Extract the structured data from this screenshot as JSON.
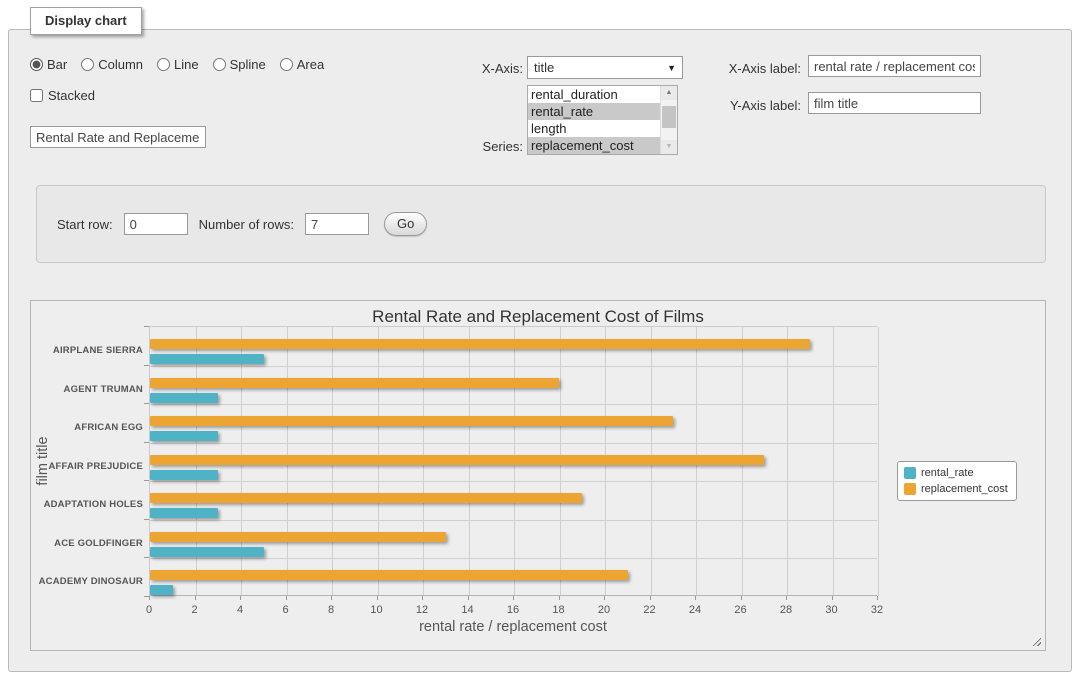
{
  "panel": {
    "legend": "Display chart"
  },
  "chart_type": {
    "options": [
      "Bar",
      "Column",
      "Line",
      "Spline",
      "Area"
    ],
    "selected": "Bar"
  },
  "stacked": {
    "label": "Stacked",
    "checked": false
  },
  "title_input": {
    "value": "Rental Rate and Replacemer"
  },
  "x_axis_select": {
    "label": "X-Axis:",
    "selected": "title"
  },
  "series_select": {
    "label": "Series:",
    "options": [
      "rental_duration",
      "rental_rate",
      "length",
      "replacement_cost"
    ],
    "selected": [
      "rental_rate",
      "replacement_cost"
    ]
  },
  "x_axis_label_field": {
    "label": "X-Axis label:",
    "value": "rental rate / replacement cost"
  },
  "y_axis_label_field": {
    "label": "Y-Axis label:",
    "value": "film title"
  },
  "rows_form": {
    "start_row_label": "Start row:",
    "start_row_value": "0",
    "num_rows_label": "Number of rows:",
    "num_rows_value": "7",
    "go_label": "Go"
  },
  "chart_data": {
    "type": "bar",
    "title": "Rental Rate and Replacement Cost of Films",
    "xlabel": "rental rate / replacement cost",
    "ylabel": "film title",
    "categories": [
      "AIRPLANE SIERRA",
      "AGENT TRUMAN",
      "AFRICAN EGG",
      "AFFAIR PREJUDICE",
      "ADAPTATION HOLES",
      "ACE GOLDFINGER",
      "ACADEMY DINOSAUR"
    ],
    "series": [
      {
        "name": "rental_rate",
        "color": "#4FB3C5",
        "values": [
          4.99,
          2.99,
          2.99,
          2.99,
          2.99,
          4.99,
          0.99
        ]
      },
      {
        "name": "replacement_cost",
        "color": "#ECA433",
        "values": [
          28.99,
          17.99,
          22.99,
          26.99,
          18.99,
          12.99,
          20.99
        ]
      }
    ],
    "group_draw_order": [
      "replacement_cost",
      "rental_rate"
    ],
    "xlim": [
      0,
      32
    ],
    "xticks": [
      0,
      2,
      4,
      6,
      8,
      10,
      12,
      14,
      16,
      18,
      20,
      22,
      24,
      26,
      28,
      30,
      32
    ],
    "grid": true,
    "legend_position": "right",
    "background": "#eeeeee"
  }
}
